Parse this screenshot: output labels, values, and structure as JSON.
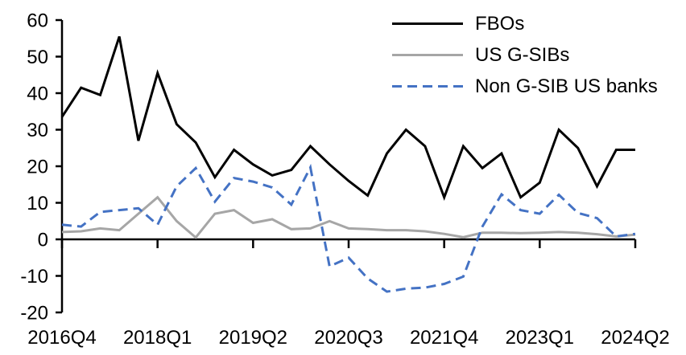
{
  "chart_data": {
    "type": "line",
    "title": "",
    "xlabel": "",
    "ylabel": "",
    "x": [
      "2016Q4",
      "2017Q1",
      "2017Q2",
      "2017Q3",
      "2017Q4",
      "2018Q1",
      "2018Q2",
      "2018Q3",
      "2018Q4",
      "2019Q1",
      "2019Q2",
      "2019Q3",
      "2019Q4",
      "2020Q1",
      "2020Q2",
      "2020Q3",
      "2020Q4",
      "2021Q1",
      "2021Q2",
      "2021Q3",
      "2021Q4",
      "2022Q1",
      "2022Q2",
      "2022Q3",
      "2022Q4",
      "2023Q1",
      "2023Q2",
      "2023Q3",
      "2023Q4",
      "2024Q1",
      "2024Q2"
    ],
    "series": [
      {
        "name": "FBOs",
        "color": "#000000",
        "style": "solid",
        "values": [
          33.5,
          41.5,
          39.5,
          55.5,
          27,
          45.5,
          31.5,
          26.5,
          17,
          24.5,
          20.5,
          17.5,
          19,
          25.5,
          20.5,
          16,
          12,
          23.5,
          30,
          25.5,
          11.5,
          25.5,
          19.5,
          23.5,
          11.5,
          15.5,
          30,
          25,
          14.5,
          24.5,
          24.5
        ]
      },
      {
        "name": "US G-SIBs",
        "color": "#A6A6A6",
        "style": "solid",
        "values": [
          2,
          2.2,
          3,
          2.5,
          7,
          11.5,
          5,
          0.5,
          7,
          8,
          4.5,
          5.5,
          2.8,
          3,
          5,
          3,
          2.8,
          2.5,
          2.5,
          2.2,
          1.5,
          0.6,
          1.8,
          1.8,
          1.7,
          1.8,
          2,
          1.8,
          1.4,
          0.8,
          1.3
        ]
      },
      {
        "name": "Non G-SIB US banks",
        "color": "#4472C4",
        "style": "dashed",
        "values": [
          4,
          3.5,
          7.5,
          8,
          8.5,
          4,
          14.5,
          19.5,
          10.3,
          16.8,
          15.8,
          14.2,
          9.5,
          19.7,
          -7.4,
          -5,
          -10.7,
          -14.3,
          -13.5,
          -13.2,
          -12.2,
          -10.2,
          3.5,
          12.3,
          8,
          7,
          12.2,
          7.2,
          5.8,
          0.8,
          1.5
        ]
      }
    ],
    "ylim": [
      -20,
      60
    ],
    "y_ticks": [
      60,
      50,
      40,
      30,
      20,
      10,
      0,
      -10,
      -20
    ],
    "x_tick_labels": [
      "2016Q4",
      "2018Q1",
      "2019Q2",
      "2020Q3",
      "2021Q4",
      "2023Q1",
      "2024Q2"
    ],
    "x_tick_indices": [
      0,
      5,
      10,
      15,
      20,
      25,
      30
    ],
    "grid": false,
    "legend_position": "top-right",
    "axis_color": "#000000"
  }
}
